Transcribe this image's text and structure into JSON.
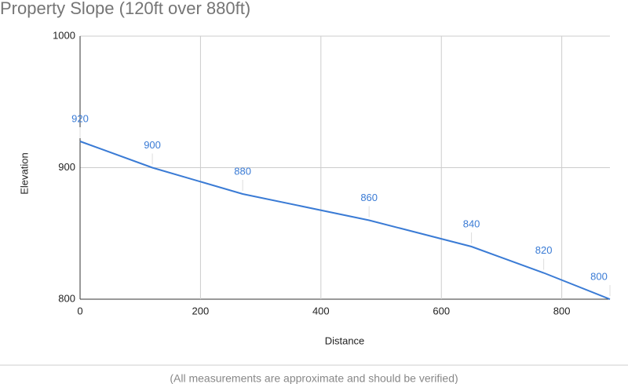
{
  "chart_data": {
    "type": "line",
    "title": "Property Slope (120ft over 880ft)",
    "x_label": "Distance",
    "y_label": "Elevation",
    "x": [
      0,
      120,
      270,
      480,
      650,
      770,
      880
    ],
    "series": [
      {
        "name": "Elevation",
        "color": "#3a7bd5",
        "values": [
          920,
          900,
          880,
          860,
          840,
          820,
          800
        ]
      }
    ],
    "xlim": [
      0,
      880
    ],
    "xticks": [
      0,
      200,
      400,
      600,
      800
    ],
    "ylim": [
      800,
      1000
    ],
    "yticks": [
      800,
      900,
      1000
    ],
    "grid": true,
    "note": "(All measurements are approximate and should be verified)"
  }
}
